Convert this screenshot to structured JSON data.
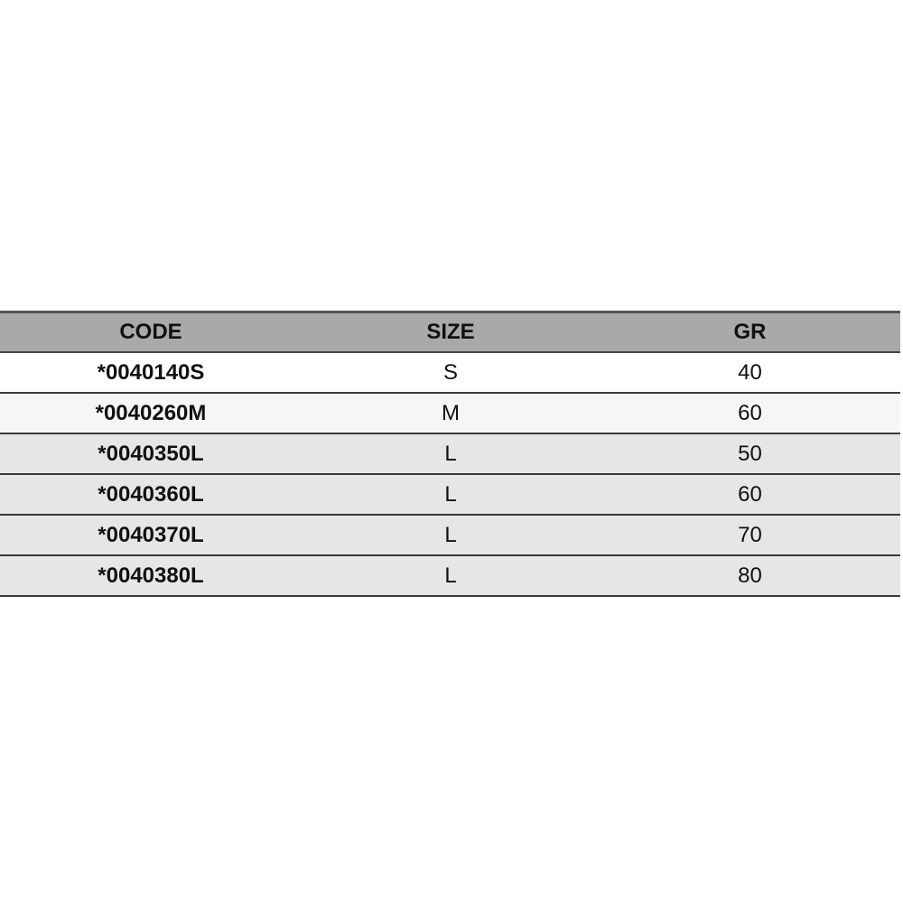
{
  "table": {
    "headers": [
      "CODE",
      "SIZE",
      "GR"
    ],
    "rows": [
      {
        "code": "*0040140S",
        "size": "S",
        "gr": "40",
        "bg": "#ffffff"
      },
      {
        "code": "*0040260M",
        "size": "M",
        "gr": "60",
        "bg": "#f6f6f6"
      },
      {
        "code": "*0040350L",
        "size": "L",
        "gr": "50",
        "bg": "#e6e6e6"
      },
      {
        "code": "*0040360L",
        "size": "L",
        "gr": "60",
        "bg": "#e6e6e6"
      },
      {
        "code": "*0040370L",
        "size": "L",
        "gr": "70",
        "bg": "#e6e6e6"
      },
      {
        "code": "*0040380L",
        "size": "L",
        "gr": "80",
        "bg": "#e6e6e6"
      }
    ]
  }
}
